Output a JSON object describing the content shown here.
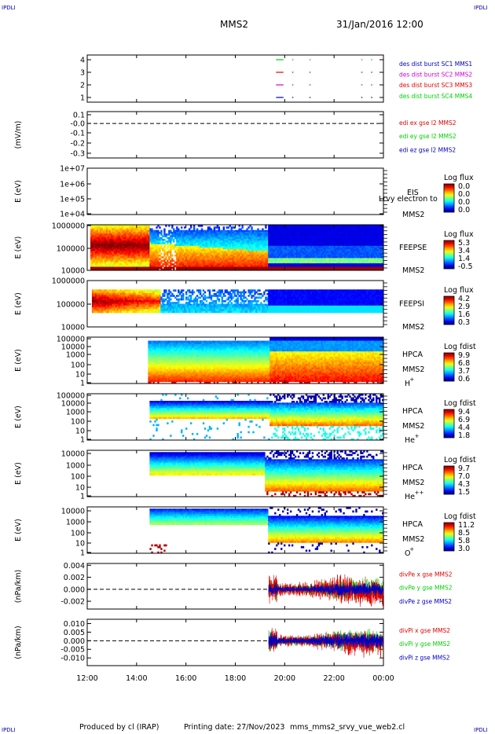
{
  "header": {
    "title": "MMS2",
    "date": "31/Jan/2016 12:00",
    "corner_left_top": "IPDLI",
    "corner_right_top": "IPDLI",
    "corner_left_bottom": "IPDLI",
    "corner_right_bottom": "IPDLI"
  },
  "footer": {
    "produced": "Produced by cl (IRAP)",
    "printing": "Printing date: 27/Nov/2023",
    "file": "mms_mms2_srvy_vue_web2.cl"
  },
  "colors": {
    "red": "#e00000",
    "green": "#00d000",
    "magenta": "#d000d0",
    "blue": "#0000c0"
  },
  "chart_data": {
    "type": "heatmap",
    "x_ticks": [
      "12:00",
      "14:00",
      "16:00",
      "18:00",
      "20:00",
      "22:00",
      "00:00"
    ],
    "panels": [
      {
        "id": "burst",
        "type": "line",
        "ylabel": "",
        "yticks": [
          "4",
          "3",
          "2",
          "1"
        ],
        "legend": [
          {
            "text": "des dist burst SC1 MMS1",
            "color": "blue"
          },
          {
            "text": "des dist burst SC2 MMS2",
            "color": "magenta"
          },
          {
            "text": "des dist burst SC3 MMS3",
            "color": "red"
          },
          {
            "text": "des dist burst SC4 MMS4",
            "color": "green"
          }
        ],
        "series": [
          {
            "level": 4,
            "color": "green",
            "segments": [
              [
                19.65,
                19.95
              ],
              [
                20.3,
                20.35
              ],
              [
                21.0,
                21.05
              ],
              [
                23.1,
                23.15
              ],
              [
                23.5,
                23.55
              ]
            ]
          },
          {
            "level": 3,
            "color": "red",
            "segments": [
              [
                19.65,
                19.95
              ],
              [
                20.3,
                20.35
              ],
              [
                21.0,
                21.05
              ],
              [
                23.1,
                23.15
              ],
              [
                23.5,
                23.55
              ]
            ]
          },
          {
            "level": 2,
            "color": "magenta",
            "segments": [
              [
                19.65,
                19.95
              ],
              [
                20.3,
                20.35
              ],
              [
                21.0,
                21.05
              ],
              [
                23.1,
                23.15
              ],
              [
                23.5,
                23.55
              ]
            ]
          },
          {
            "level": 1,
            "color": "blue",
            "segments": [
              [
                19.65,
                19.95
              ],
              [
                20.3,
                20.35
              ],
              [
                21.0,
                21.05
              ],
              [
                23.1,
                23.15
              ],
              [
                23.5,
                23.55
              ]
            ]
          }
        ]
      },
      {
        "id": "edi",
        "type": "line",
        "ylabel": "(mV/m)",
        "yticks": [
          "0.1",
          "-0.0",
          "-0.1",
          "-0.2",
          "-0.3"
        ],
        "ylim": [
          -0.35,
          0.12
        ],
        "legend": [
          {
            "text": "edi ex gse l2 MMS2",
            "color": "red"
          },
          {
            "text": "edi ey gse l2 MMS2",
            "color": "green"
          },
          {
            "text": "edi ez gse l2 MMS2",
            "color": "blue"
          }
        ]
      },
      {
        "id": "eis",
        "type": "heatmap",
        "ylabel": "E (eV)",
        "yticks": [
          "1e+07",
          "1e+06",
          "1e+05",
          "1e+04"
        ],
        "instrument": [
          "EIS",
          "MMS2"
        ],
        "overlay": "Lrvy electron to",
        "colorbar_title": "Log flux",
        "colorbar_ticks": [
          "0.0",
          "0.0",
          "0.0",
          "0.0"
        ]
      },
      {
        "id": "feepse",
        "type": "heatmap",
        "ylabel": "E (eV)",
        "yticks": [
          "1000000",
          "100000",
          "10000"
        ],
        "instrument": [
          "FEEPSE",
          "MMS2"
        ],
        "colorbar_title": "Log flux",
        "colorbar_ticks": [
          "5.3",
          "3.4",
          "1.4",
          "-0.5"
        ]
      },
      {
        "id": "feepsi",
        "type": "heatmap",
        "ylabel": "E (eV)",
        "yticks": [
          "1000000",
          "100000",
          "10000"
        ],
        "instrument": [
          "FEEPSI",
          "MMS2"
        ],
        "colorbar_title": "Log flux",
        "colorbar_ticks": [
          "4.2",
          "2.9",
          "1.6",
          "0.3"
        ]
      },
      {
        "id": "hpca_h",
        "type": "heatmap",
        "ylabel": "E (eV)",
        "yticks": [
          "100000",
          "10000",
          "1000",
          "100",
          "10",
          "1"
        ],
        "instrument": [
          "HPCA",
          "MMS2"
        ],
        "species": "H",
        "charge": "+",
        "colorbar_title": "Log fdist",
        "colorbar_ticks": [
          "9.9",
          "6.8",
          "3.7",
          "0.6"
        ]
      },
      {
        "id": "hpca_he1",
        "type": "heatmap",
        "ylabel": "E (eV)",
        "yticks": [
          "100000",
          "10000",
          "1000",
          "100",
          "10",
          "1"
        ],
        "instrument": [
          "HPCA",
          "MMS2"
        ],
        "species": "He",
        "charge": "+",
        "colorbar_title": "Log fdist",
        "colorbar_ticks": [
          "9.4",
          "6.9",
          "4.4",
          "1.8"
        ]
      },
      {
        "id": "hpca_he2",
        "type": "heatmap",
        "ylabel": "E (eV)",
        "yticks": [
          "10000",
          "1000",
          "100",
          "10",
          "1"
        ],
        "instrument": [
          "HPCA",
          "MMS2"
        ],
        "species": "He",
        "charge": "++",
        "colorbar_title": "Log fdist",
        "colorbar_ticks": [
          "9.7",
          "7.0",
          "4.3",
          "1.5"
        ]
      },
      {
        "id": "hpca_o",
        "type": "heatmap",
        "ylabel": "E (eV)",
        "yticks": [
          "10000",
          "1000",
          "100",
          "10",
          "1"
        ],
        "instrument": [
          "HPCA",
          "MMS2"
        ],
        "species": "O",
        "charge": "+",
        "colorbar_title": "Log fdist",
        "colorbar_ticks": [
          "11.2",
          "8.5",
          "5.8",
          "3.0"
        ]
      },
      {
        "id": "divpe",
        "type": "line",
        "ylabel": "(nPa/km)",
        "yticks": [
          "0.004",
          "0.002",
          "0.000",
          "-0.002"
        ],
        "ylim": [
          -0.0033,
          0.0043
        ],
        "legend": [
          {
            "text": "divPe x gse MMS2",
            "color": "red"
          },
          {
            "text": "divPe y gse MMS2",
            "color": "green"
          },
          {
            "text": "divPe z gse MMS2",
            "color": "blue"
          }
        ]
      },
      {
        "id": "divpi",
        "type": "line",
        "ylabel": "(nPa/km)",
        "yticks": [
          "0.010",
          "0.005",
          "0.000",
          "-0.005",
          "-0.010"
        ],
        "ylim": [
          -0.0145,
          0.0125
        ],
        "legend": [
          {
            "text": "divPi x gse MMS2",
            "color": "red"
          },
          {
            "text": "divPi y gse MMS2",
            "color": "green"
          },
          {
            "text": "divPi z gse MMS2",
            "color": "blue"
          }
        ]
      }
    ]
  }
}
